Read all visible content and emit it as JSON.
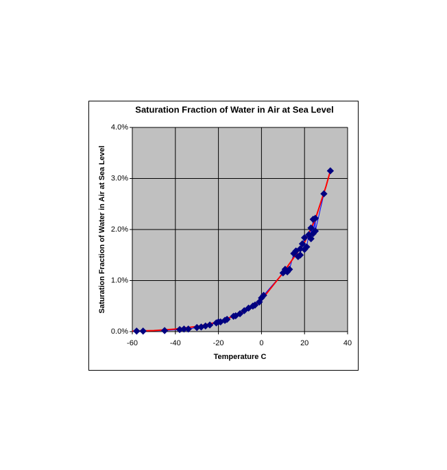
{
  "chart_data": {
    "type": "scatter",
    "title": "Saturation Fraction of Water in Air at Sea Level",
    "x_label": "Temperature C",
    "y_label": "Saturation Fraction of Water in Air at Sea Level",
    "xlim": [
      -60,
      40
    ],
    "xticks": [
      -60,
      -40,
      -20,
      0,
      20,
      40
    ],
    "ylim": [
      0,
      4
    ],
    "yticks": [
      {
        "value": 0,
        "label": "0.0%"
      },
      {
        "value": 1,
        "label": "1.0%"
      },
      {
        "value": 2,
        "label": "2.0%"
      },
      {
        "value": 3,
        "label": "3.0%"
      },
      {
        "value": 4,
        "label": "4.0%"
      }
    ],
    "grid": true,
    "plot_background": "#c0c0c0",
    "series": [
      {
        "color": "#000080",
        "line_color": "#0000ff",
        "marker": "diamond",
        "x": [
          -58,
          -55,
          -45,
          -38,
          -36,
          -34,
          -30,
          -28,
          -26,
          -24,
          -21,
          -20,
          -19,
          -17,
          -16,
          -13,
          -12,
          -10,
          -8,
          -6,
          -4,
          -3,
          -1,
          0,
          1,
          10,
          11,
          12,
          13,
          15,
          16,
          17,
          18,
          18,
          19,
          20,
          20,
          21,
          22,
          23,
          23,
          24,
          24,
          25,
          25,
          29,
          32
        ],
        "values": [
          0.01,
          0.01,
          0.02,
          0.04,
          0.05,
          0.05,
          0.08,
          0.09,
          0.11,
          0.13,
          0.17,
          0.19,
          0.19,
          0.22,
          0.24,
          0.3,
          0.31,
          0.35,
          0.41,
          0.46,
          0.5,
          0.52,
          0.58,
          0.66,
          0.71,
          1.15,
          1.22,
          1.17,
          1.22,
          1.53,
          1.58,
          1.47,
          1.5,
          1.62,
          1.72,
          1.84,
          1.61,
          1.66,
          1.9,
          2.03,
          1.82,
          2.2,
          1.92,
          2.22,
          1.97,
          2.7,
          3.15
        ]
      },
      {
        "color": "#ff0000",
        "marker": "none",
        "x": [
          -60,
          -50,
          -40,
          -30,
          -20,
          -10,
          0,
          10,
          20,
          25,
          30,
          32
        ],
        "values": [
          0.01,
          0.02,
          0.05,
          0.1,
          0.19,
          0.35,
          0.62,
          1.15,
          1.75,
          2.2,
          2.85,
          3.15
        ]
      }
    ]
  }
}
